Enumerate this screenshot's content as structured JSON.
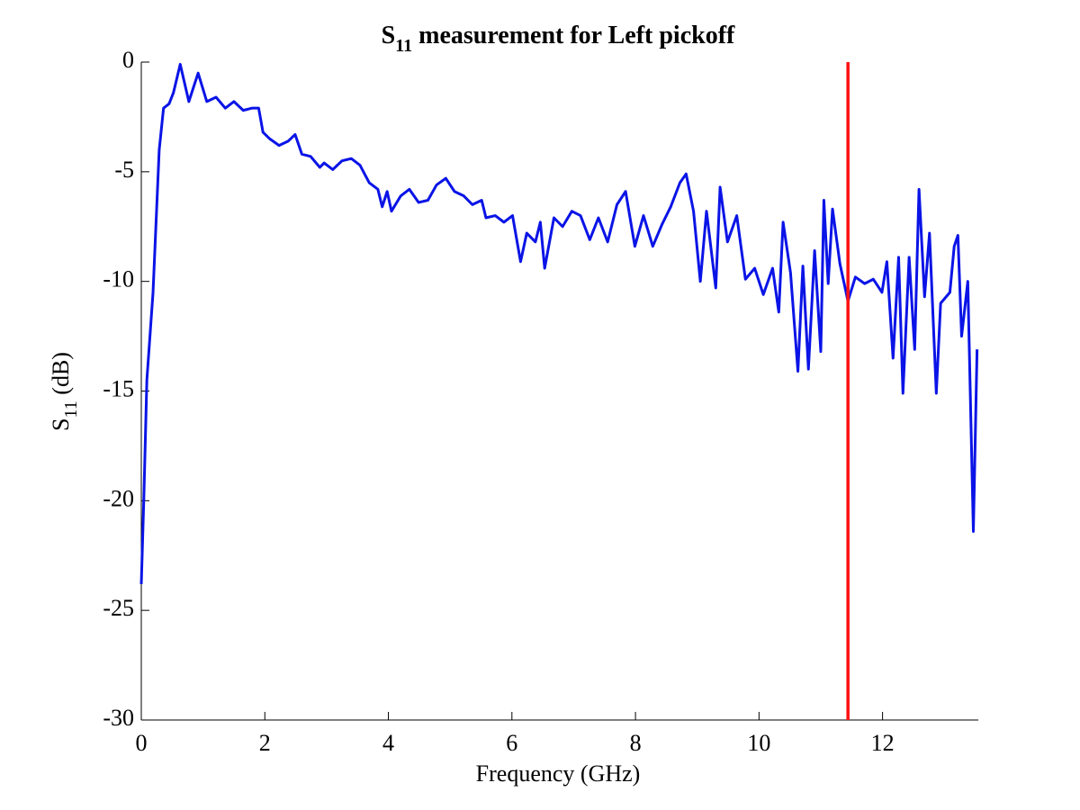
{
  "chart_data": {
    "type": "line",
    "title": {
      "base": "S",
      "subscript": "11",
      "rest": " measurement for Left pickoff"
    },
    "xlabel": "Frequency (GHz)",
    "ylabel": {
      "base": "S",
      "subscript": "11",
      "rest": " (dB)"
    },
    "xlim": [
      0,
      13.55
    ],
    "ylim": [
      -30,
      0
    ],
    "xticks": [
      0,
      2,
      4,
      6,
      8,
      10,
      12
    ],
    "yticks": [
      -30,
      -25,
      -20,
      -15,
      -10,
      -5,
      0
    ],
    "grid": false,
    "x": [
      0.0,
      0.04,
      0.09,
      0.19,
      0.29,
      0.36,
      0.45,
      0.52,
      0.63,
      0.77,
      0.92,
      1.06,
      1.21,
      1.36,
      1.5,
      1.65,
      1.79,
      1.9,
      1.97,
      2.08,
      2.23,
      2.38,
      2.49,
      2.6,
      2.74,
      2.89,
      2.96,
      3.1,
      3.25,
      3.4,
      3.54,
      3.69,
      3.83,
      3.9,
      3.98,
      4.05,
      4.2,
      4.34,
      4.49,
      4.64,
      4.78,
      4.93,
      5.07,
      5.22,
      5.36,
      5.51,
      5.58,
      5.73,
      5.87,
      6.01,
      6.14,
      6.24,
      6.38,
      6.46,
      6.53,
      6.68,
      6.82,
      6.97,
      7.11,
      7.26,
      7.4,
      7.55,
      7.7,
      7.84,
      7.99,
      8.13,
      8.28,
      8.43,
      8.57,
      8.72,
      8.82,
      8.94,
      9.05,
      9.15,
      9.3,
      9.37,
      9.49,
      9.64,
      9.78,
      9.93,
      10.07,
      10.22,
      10.32,
      10.39,
      10.51,
      10.63,
      10.71,
      10.8,
      10.9,
      11.0,
      11.05,
      11.12,
      11.19,
      11.31,
      11.44,
      11.56,
      11.71,
      11.85,
      11.99,
      12.07,
      12.17,
      12.26,
      12.33,
      12.43,
      12.52,
      12.59,
      12.68,
      12.76,
      12.87,
      12.94,
      13.09,
      13.16,
      13.22,
      13.28,
      13.38,
      13.47,
      13.53
    ],
    "series": [
      {
        "color": "#0a14e6",
        "values": [
          -23.8,
          -20,
          -14.5,
          -10.5,
          -4.0,
          -2.1,
          -1.9,
          -1.4,
          -0.1,
          -1.8,
          -0.5,
          -1.8,
          -1.6,
          -2.1,
          -1.8,
          -2.2,
          -2.1,
          -2.1,
          -3.2,
          -3.5,
          -3.8,
          -3.6,
          -3.3,
          -4.2,
          -4.3,
          -4.8,
          -4.6,
          -4.9,
          -4.5,
          -4.4,
          -4.7,
          -5.5,
          -5.8,
          -6.6,
          -5.9,
          -6.8,
          -6.1,
          -5.8,
          -6.4,
          -6.3,
          -5.6,
          -5.3,
          -5.9,
          -6.1,
          -6.5,
          -6.3,
          -7.1,
          -7.0,
          -7.3,
          -7.0,
          -9.1,
          -7.8,
          -8.2,
          -7.3,
          -9.4,
          -7.1,
          -7.5,
          -6.8,
          -7.0,
          -8.1,
          -7.1,
          -8.2,
          -6.5,
          -5.9,
          -8.4,
          -7.0,
          -8.4,
          -7.4,
          -6.6,
          -5.5,
          -5.1,
          -6.8,
          -10.0,
          -6.8,
          -10.3,
          -5.7,
          -8.2,
          -7.0,
          -9.9,
          -9.4,
          -10.6,
          -9.4,
          -11.4,
          -7.3,
          -9.6,
          -14.1,
          -9.3,
          -14.0,
          -8.6,
          -13.2,
          -6.3,
          -10.1,
          -6.7,
          -9.2,
          -10.9,
          -9.8,
          -10.1,
          -9.9,
          -10.5,
          -9.1,
          -13.5,
          -8.9,
          -15.1,
          -8.9,
          -13.1,
          -5.8,
          -10.7,
          -7.8,
          -15.1,
          -11.0,
          -10.5,
          -8.4,
          -7.9,
          -12.5,
          -10.0,
          -21.4,
          -13.1
        ]
      }
    ],
    "vline": {
      "x": 11.44,
      "color": "#ff1010"
    }
  }
}
